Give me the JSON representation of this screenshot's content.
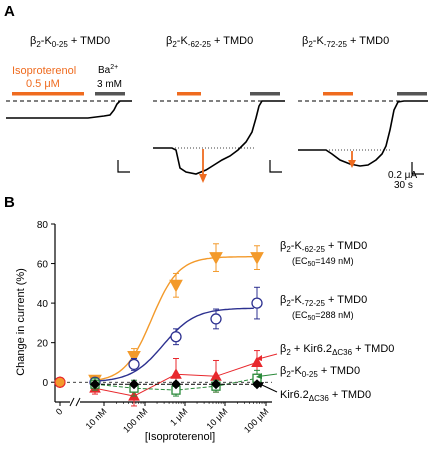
{
  "panel_a": {
    "label": "A",
    "titles": [
      {
        "main": "β",
        "sub1": "2",
        "mid": "-K",
        "sub2": "0-25",
        "tail": " + TMD0"
      },
      {
        "main": "β",
        "sub1": "2",
        "mid": "-K",
        "sub2": "-62-25",
        "tail": " + TMD0"
      },
      {
        "main": "β",
        "sub1": "2",
        "mid": "-K",
        "sub2": "-72-25",
        "tail": " + TMD0"
      }
    ],
    "drug_label": "Isoproterenol",
    "drug_conc": "0.5 μM",
    "ba_label": "Ba",
    "ba_sup": "2+",
    "ba_conc": "3 mM",
    "scale_current": "0.2 μA",
    "scale_time": "30 s",
    "colors": {
      "drug": "#ef6b1f",
      "ba": "#555555"
    }
  },
  "panel_b": {
    "label": "B",
    "ylabel": "Change in current (%)",
    "xlabel": "[Isoproterenol]",
    "zero_label": "0",
    "legend": [
      {
        "prefix": "β",
        "sub1": "2",
        "mid": "-K",
        "sub2": "-62-25",
        "tail": " + TMD0",
        "note": "(EC",
        "note_sub": "50",
        "note_tail": "=149 nM)"
      },
      {
        "prefix": "β",
        "sub1": "2",
        "mid": "-K",
        "sub2": "-72-25",
        "tail": " + TMD0",
        "note": "(EC",
        "note_sub": "50",
        "note_tail": "=288 nM)"
      },
      {
        "prefix": "β",
        "sub1": "2",
        "mid": " + Kir6.2",
        "sub2": "ΔC36",
        "tail": " + TMD0"
      },
      {
        "prefix": "β",
        "sub1": "2",
        "mid": "-K",
        "sub2": "0-25",
        "tail": " + TMD0"
      },
      {
        "prefix": "Kir6.2",
        "sub1": "",
        "mid": "",
        "sub2": "ΔC36",
        "tail": " + TMD0"
      }
    ]
  },
  "chart_data": {
    "type": "scatter",
    "xlabel": "[Isoproterenol]",
    "ylabel": "Change in current (%)",
    "x_scale": "log (with axis break after 0)",
    "x_tick_labels": [
      "0",
      "10 nM",
      "100 nM",
      "1 μM",
      "10 μM",
      "100 μM"
    ],
    "y_tick_labels": [
      "0",
      "20",
      "40",
      "60",
      "80"
    ],
    "ylim": [
      -10,
      80
    ],
    "grid": false,
    "series": [
      {
        "name": "β2-K-62-25 + TMD0",
        "color": "#f39a2b",
        "marker": "filled-triangle-down",
        "x": [
          "0",
          "5 nM",
          "50 nM",
          "300 nM",
          "3 μM",
          "50 μM"
        ],
        "y": [
          0,
          1,
          13,
          49,
          63,
          63
        ],
        "err": [
          0,
          2,
          4,
          6,
          7,
          6
        ],
        "ec50": "149 nM"
      },
      {
        "name": "β2-K-72-25 + TMD0",
        "color": "#2d3190",
        "marker": "open-circle",
        "x": [
          "0",
          "5 nM",
          "50 nM",
          "300 nM",
          "3 μM",
          "50 μM"
        ],
        "y": [
          0,
          0,
          9,
          23,
          32,
          40
        ],
        "err": [
          0,
          2,
          3,
          4,
          5,
          8
        ],
        "ec50": "288 nM"
      },
      {
        "name": "β2 + Kir6.2ΔC36 + TMD0",
        "color": "#e8282d",
        "marker": "filled-triangle-up",
        "x": [
          "0",
          "5 nM",
          "50 nM",
          "300 nM",
          "3 μM",
          "50 μM"
        ],
        "y": [
          0,
          -3,
          -7,
          4,
          3,
          10
        ],
        "err": [
          0,
          3,
          5,
          8,
          8,
          6
        ]
      },
      {
        "name": "β2-K0-25 + TMD0",
        "color": "#2a8a3a",
        "marker": "open-square",
        "x": [
          "0",
          "5 nM",
          "50 nM",
          "300 nM",
          "3 μM",
          "50 μM"
        ],
        "y": [
          0,
          -1,
          -3,
          -4,
          -2,
          2
        ],
        "err": [
          0,
          3,
          4,
          3,
          3,
          4
        ]
      },
      {
        "name": "Kir6.2ΔC36 + TMD0",
        "color": "#000000",
        "marker": "filled-diamond",
        "x": [
          "0",
          "5 nM",
          "50 nM",
          "300 nM",
          "3 μM",
          "50 μM"
        ],
        "y": [
          0,
          -1,
          -1,
          -1,
          -1,
          -1
        ],
        "err": [
          0,
          1,
          1,
          1,
          1,
          1
        ]
      }
    ]
  }
}
